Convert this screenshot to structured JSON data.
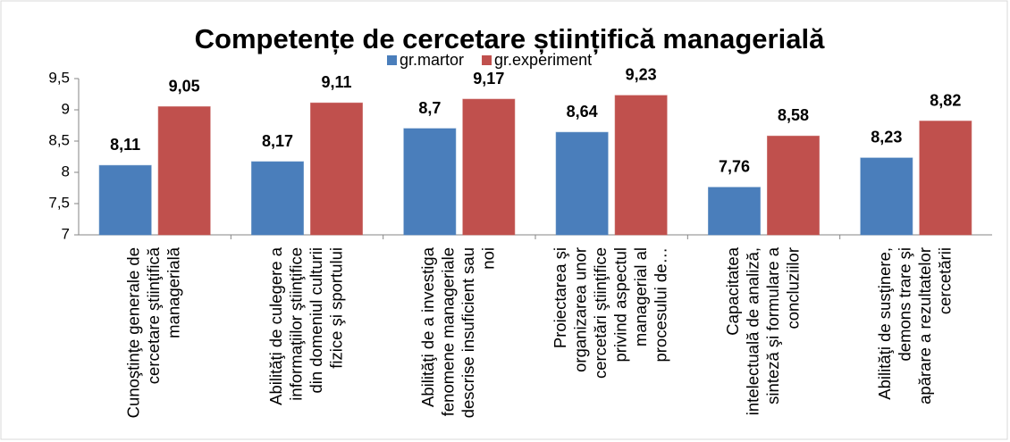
{
  "chart_data": {
    "type": "bar",
    "title": "Competențe de cercetare științifică managerială",
    "categories": [
      "Cunoştinţe generale de cercetare ştiinţifică managerială",
      "Abilităţi de culegere a informaţiilor ştiinţifice din domeniul culturii fizice şi sportului",
      "Abilităţi de a investiga fenomene manageriale descrise insuficient sau noi",
      "Proiectarea şi organizarea unor cercetări ştiinţifice privind aspectul managerial al procesului de…",
      "Capacitatea intelectuală de analiză, sinteză şi formulare a concluziilor",
      "Abilităţi de susţinere, demons trare şi apărare a rezultatelor cercetării"
    ],
    "series": [
      {
        "name": "gr.martor",
        "color": "#4a7ebb",
        "values": [
          8.11,
          8.17,
          8.7,
          8.64,
          7.76,
          8.23
        ],
        "value_labels": [
          "8,11",
          "8,17",
          "8,7",
          "8,64",
          "7,76",
          "8,23"
        ]
      },
      {
        "name": "gr.experiment",
        "color": "#c0504d",
        "values": [
          9.05,
          9.11,
          9.17,
          9.23,
          8.58,
          8.82
        ],
        "value_labels": [
          "9,05",
          "9,11",
          "9,17",
          "9,23",
          "8,58",
          "8,82"
        ]
      }
    ],
    "ylim": [
      7,
      9.5
    ],
    "yticks": [
      7,
      {
        "value": 7.5,
        "label": "7,5"
      },
      8,
      {
        "value": 8.5,
        "label": "8,5"
      },
      9,
      {
        "value": 9.5,
        "label": "9,5"
      }
    ],
    "grid": false
  }
}
